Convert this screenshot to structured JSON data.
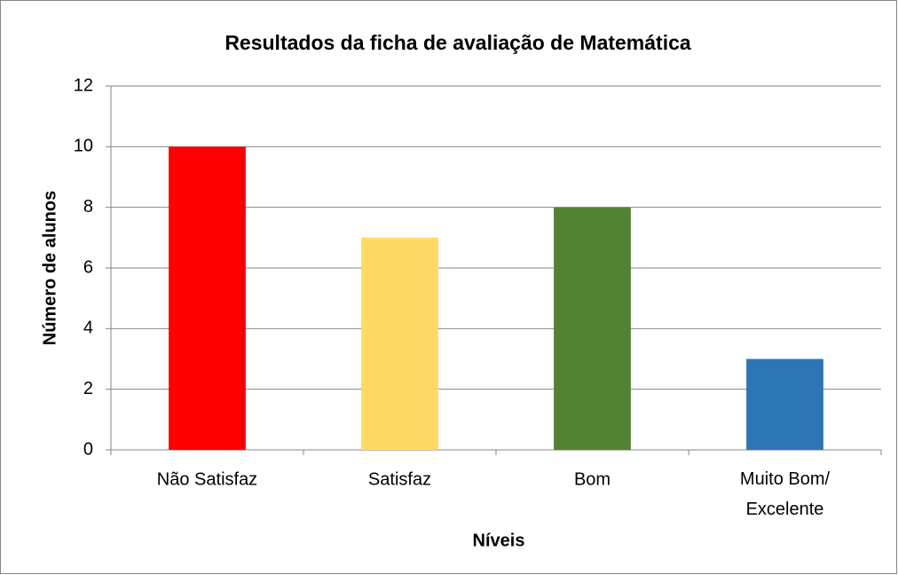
{
  "chart_data": {
    "type": "bar",
    "title": "Resultados da ficha de avaliação de Matemática",
    "x_label": "Níveis",
    "y_label": "Número de alunos",
    "categories": [
      "Não Satisfaz",
      "Satisfaz",
      "Bom",
      "Muito Bom/ Excelente"
    ],
    "values": [
      10,
      7,
      8,
      3
    ],
    "colors": [
      "#ff0000",
      "#ffd966",
      "#548235",
      "#2e75b6"
    ],
    "ylim": [
      0,
      12
    ],
    "yticks": [
      0,
      2,
      4,
      6,
      8,
      10,
      12
    ],
    "grid": true
  }
}
